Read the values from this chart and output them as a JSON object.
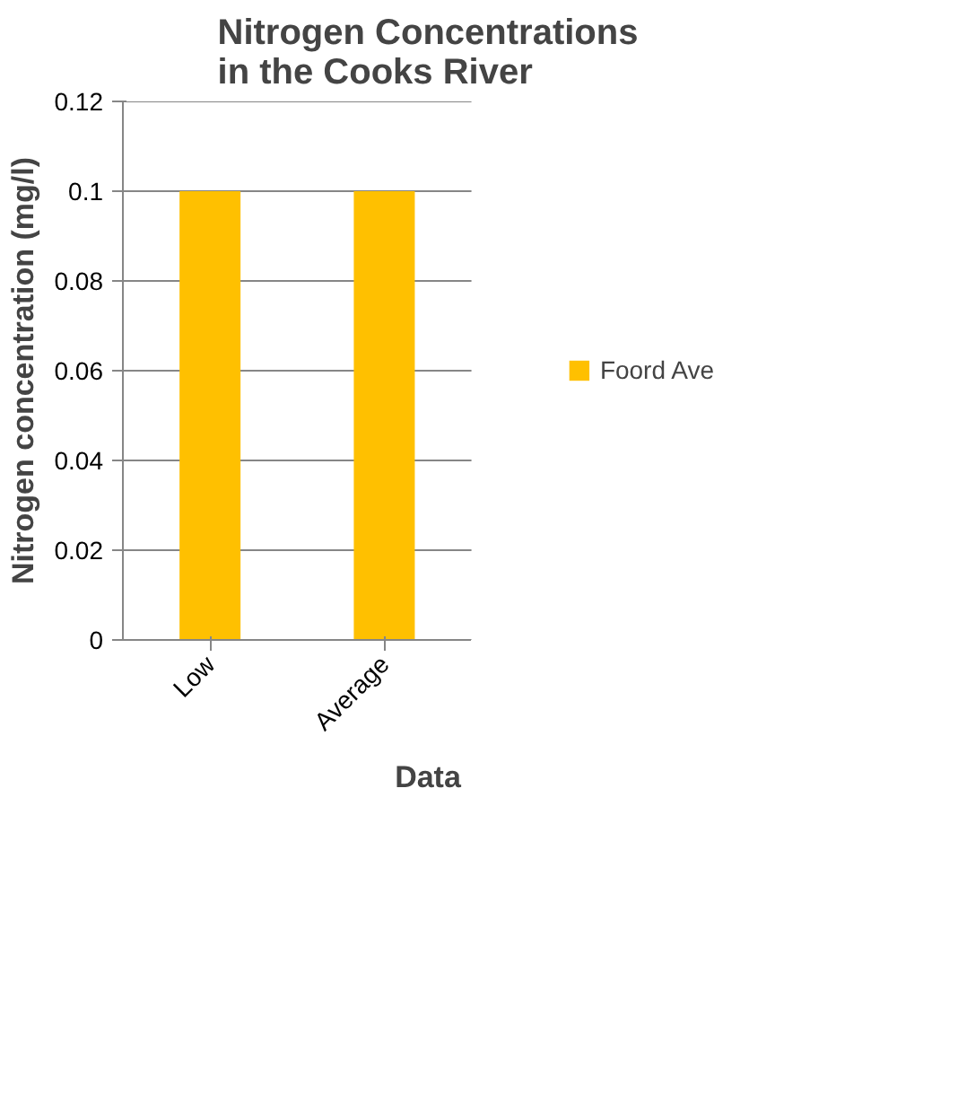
{
  "chart_data": {
    "type": "bar",
    "title": "Nitrogen Concentrations\nin the Cooks River",
    "xlabel": "Data",
    "ylabel": "Nitrogen concentration (mg/l)",
    "categories": [
      "Low",
      "Average"
    ],
    "series": [
      {
        "name": "Foord Ave",
        "color": "#ffc000",
        "values": [
          0.1,
          0.1
        ]
      }
    ],
    "ylim": [
      0,
      0.12
    ],
    "yticks": [
      0,
      0.02,
      0.04,
      0.06,
      0.08,
      0.1,
      0.12
    ],
    "grid": "y",
    "legend": "right"
  }
}
